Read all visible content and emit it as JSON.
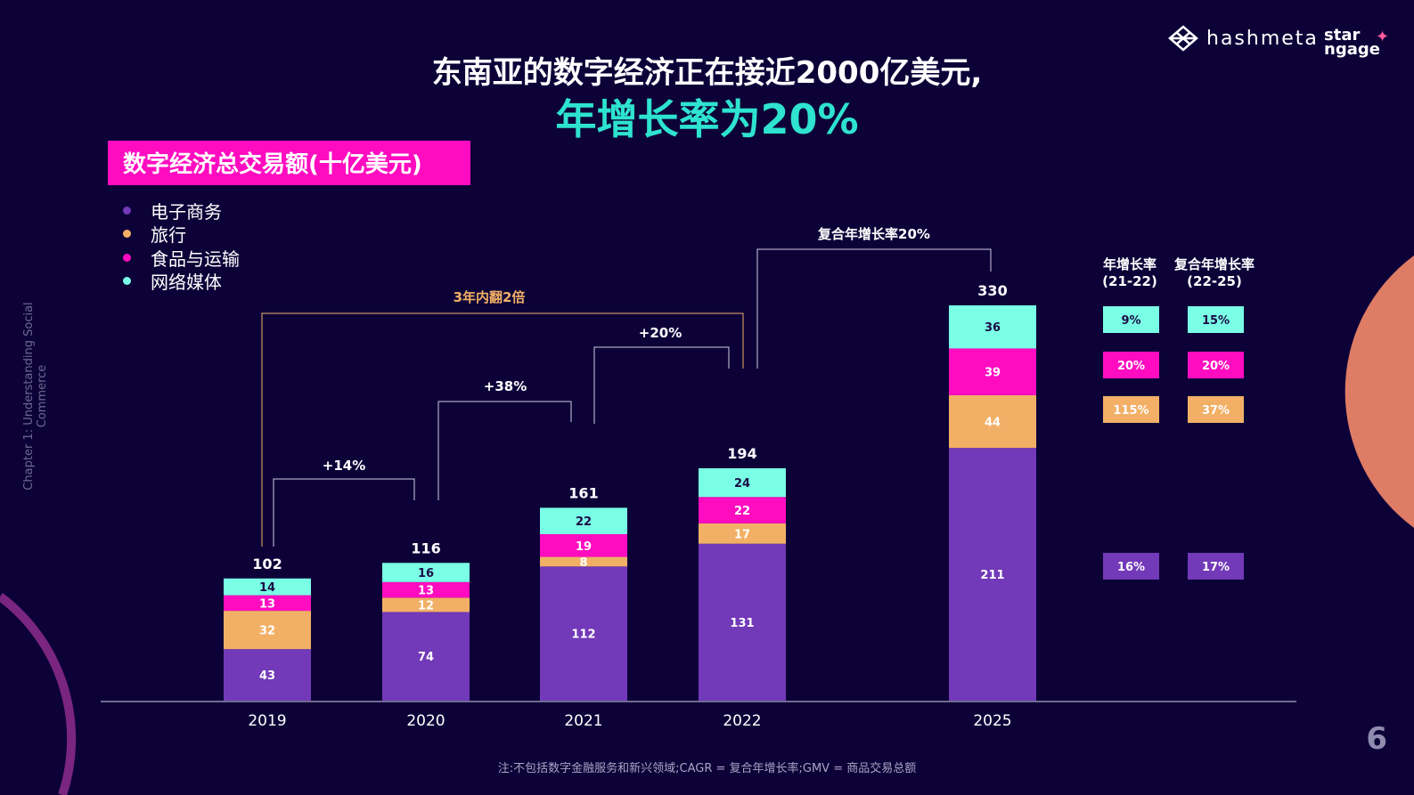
{
  "header": {
    "title_line1": "东南亚的数字经济正在接近2000亿美元,",
    "title_line2": "年增长率为20%",
    "brand_logo": "hashmeta",
    "brand_logo2": "star ngage"
  },
  "side_label": "Chapter 1: Understanding Social Commerce",
  "page_number": "6",
  "footnote": "注:不包括数字金融服务和新兴领域;CAGR = 复合年增长率;GMV = 商品交易总额",
  "chart_data": {
    "type": "bar",
    "stacked": true,
    "title": "数字经济总交易额(十亿美元)",
    "categories": [
      "2019",
      "2020",
      "2021",
      "2022",
      "2025"
    ],
    "series": [
      {
        "name": "电子商务",
        "color": "#7239b8",
        "values": [
          43,
          74,
          112,
          131,
          211
        ]
      },
      {
        "name": "旅行",
        "color": "#f2b066",
        "values": [
          32,
          12,
          8,
          17,
          44
        ]
      },
      {
        "name": "食品与运输",
        "color": "#ff0cc0",
        "values": [
          13,
          13,
          19,
          22,
          39
        ]
      },
      {
        "name": "网络媒体",
        "color": "#7affe6",
        "values": [
          14,
          16,
          22,
          24,
          36
        ]
      }
    ],
    "totals": [
      "102",
      "116",
      "161",
      "194",
      "330"
    ],
    "legend_position": "top-left",
    "grid": false,
    "annotations": {
      "g1": "+14%",
      "g2": "+38%",
      "g3": "+20%",
      "double": "3年内翻2倍",
      "cagr": "复合年增长率20%"
    },
    "growth_table": {
      "col1_header": [
        "年增长率",
        "(21-22)"
      ],
      "col2_header": [
        "复合年增长率",
        "(22-25)"
      ],
      "rows": [
        {
          "series": "网络媒体",
          "yoy": "9%",
          "cagr": "15%"
        },
        {
          "series": "食品与运输",
          "yoy": "20%",
          "cagr": "20%"
        },
        {
          "series": "旅行",
          "yoy": "115%",
          "cagr": "37%"
        },
        {
          "series": "电子商务",
          "yoy": "16%",
          "cagr": "17%"
        }
      ]
    }
  }
}
